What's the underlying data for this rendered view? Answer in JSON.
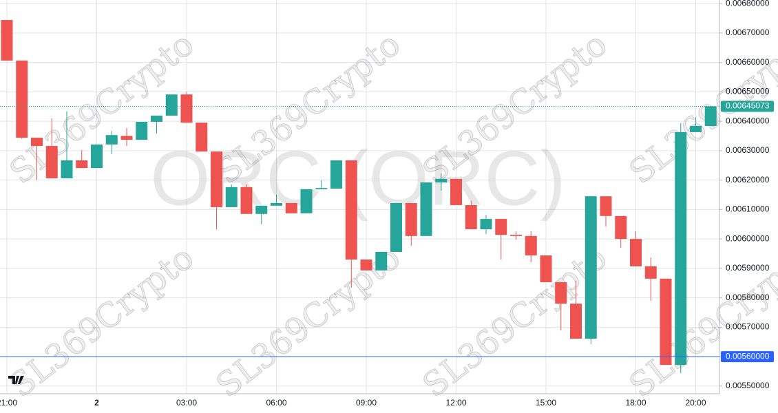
{
  "chart_data": {
    "type": "candlestick",
    "title": "ORC (ORC)",
    "watermark": "SL369Crypto",
    "categories": [
      "21:00",
      null,
      null,
      null,
      null,
      null,
      "2",
      null,
      null,
      null,
      null,
      null,
      "03:00",
      null,
      null,
      null,
      null,
      null,
      "06:00",
      null,
      null,
      null,
      null,
      null,
      "09:00",
      null,
      null,
      null,
      null,
      null,
      "12:00",
      null,
      null,
      null,
      null,
      null,
      "15:00",
      null,
      null,
      null,
      null,
      null,
      "18:00",
      null,
      null,
      null,
      "20:00",
      null
    ],
    "open": [
      0.006744,
      0.006606,
      0.006344,
      0.006316,
      0.006206,
      0.006267,
      0.006241,
      0.006321,
      0.00635,
      0.006337,
      0.006398,
      0.006419,
      0.006491,
      0.006395,
      0.006297,
      0.006108,
      0.006176,
      0.006085,
      0.006113,
      0.006122,
      0.006087,
      0.006169,
      0.006171,
      0.006267,
      0.00593,
      0.005893,
      0.005956,
      0.006122,
      0.00601,
      0.006192,
      0.006204,
      0.006115,
      0.006033,
      0.006068,
      0.006014,
      0.00601,
      0.005944,
      0.005853,
      0.00578,
      0.005661,
      0.006145,
      0.006078,
      0.006,
      0.005907,
      0.005865,
      0.005572,
      0.006363,
      0.006384
    ],
    "high": [
      0.006744,
      0.006606,
      0.006344,
      0.00641,
      0.006433,
      0.006302,
      0.006321,
      0.006367,
      0.006377,
      0.006398,
      0.006419,
      0.006491,
      0.0065,
      0.006395,
      0.006297,
      0.006185,
      0.006185,
      0.006113,
      0.00615,
      0.006122,
      0.006169,
      0.0062,
      0.006267,
      0.006267,
      0.00593,
      0.005956,
      0.006122,
      0.006122,
      0.006192,
      0.006222,
      0.006204,
      0.00613,
      0.006082,
      0.006068,
      0.006026,
      0.006026,
      0.005944,
      0.005853,
      0.005858,
      0.006145,
      0.006145,
      0.006078,
      0.006026,
      0.005937,
      0.005865,
      0.006393,
      0.006414,
      0.00645073
    ],
    "low": [
      0.006606,
      0.00634,
      0.0062,
      0.006206,
      0.006206,
      0.006241,
      0.006241,
      0.006288,
      0.006316,
      0.006337,
      0.006358,
      0.006419,
      0.006395,
      0.006297,
      0.006033,
      0.006108,
      0.006085,
      0.00605,
      0.006113,
      0.006087,
      0.006087,
      0.006169,
      0.006171,
      0.005834,
      0.005893,
      0.005893,
      0.005956,
      0.005977,
      0.00601,
      0.006164,
      0.006115,
      0.006033,
      0.006017,
      0.00593,
      0.005997,
      0.005921,
      0.005853,
      0.005689,
      0.005661,
      0.005643,
      0.006042,
      0.00597,
      0.005907,
      0.00579,
      0.005572,
      0.005544,
      0.006363,
      0.006384
    ],
    "close": [
      0.006606,
      0.006344,
      0.006316,
      0.006206,
      0.006267,
      0.006241,
      0.006321,
      0.006353,
      0.006337,
      0.006398,
      0.006419,
      0.006491,
      0.006395,
      0.006297,
      0.006108,
      0.006176,
      0.006085,
      0.006113,
      0.006122,
      0.006087,
      0.006169,
      0.006173,
      0.006267,
      0.00593,
      0.005893,
      0.005956,
      0.006122,
      0.00601,
      0.006192,
      0.006204,
      0.006115,
      0.006033,
      0.006068,
      0.006014,
      0.00601,
      0.005944,
      0.005853,
      0.00578,
      0.005661,
      0.006145,
      0.006078,
      0.006,
      0.005907,
      0.005865,
      0.005572,
      0.006363,
      0.006384,
      0.00645073
    ],
    "up_color": "#26a69a",
    "down_color": "#ef5350",
    "ylim": [
      0.005474,
      0.006812
    ],
    "yticks": [
      {
        "value": 0.0055,
        "label": "0.00550000"
      },
      {
        "value": 0.0056,
        "label": "0.00560000"
      },
      {
        "value": 0.0057,
        "label": "0.00570000"
      },
      {
        "value": 0.0058,
        "label": "0.00580000"
      },
      {
        "value": 0.0059,
        "label": "0.00590000"
      },
      {
        "value": 0.006,
        "label": "0.00600000"
      },
      {
        "value": 0.0061,
        "label": "0.00610000"
      },
      {
        "value": 0.0062,
        "label": "0.00620000"
      },
      {
        "value": 0.0063,
        "label": "0.00630000"
      },
      {
        "value": 0.0064,
        "label": "0.00640000"
      },
      {
        "value": 0.0065,
        "label": "0.00650000"
      },
      {
        "value": 0.0066,
        "label": "0.00660000"
      },
      {
        "value": 0.0067,
        "label": "0.00670000"
      },
      {
        "value": 0.0068,
        "label": "0.00680000"
      }
    ],
    "last_price": 0.00645073,
    "price_line": {
      "value": 0.0056,
      "label": "0.00560000",
      "color": "#2962ff"
    },
    "grid": true
  }
}
